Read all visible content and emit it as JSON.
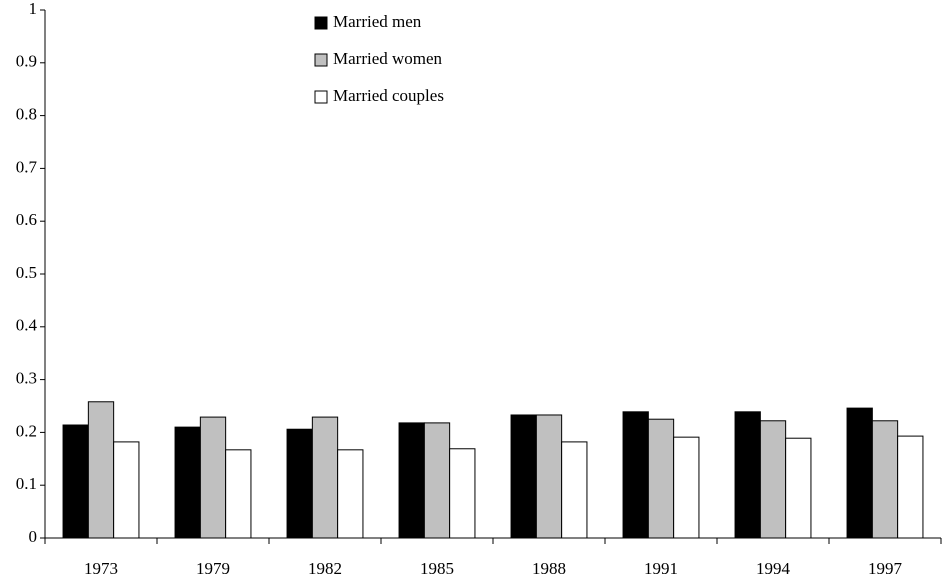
{
  "chart_data": {
    "type": "bar",
    "categories": [
      "1973",
      "1979",
      "1982",
      "1985",
      "1988",
      "1991",
      "1994",
      "1997"
    ],
    "series": [
      {
        "name": "Married men",
        "color": "#000000",
        "values": [
          0.214,
          0.21,
          0.206,
          0.218,
          0.233,
          0.239,
          0.239,
          0.246
        ]
      },
      {
        "name": "Married women",
        "color": "#c0c0c0",
        "values": [
          0.258,
          0.229,
          0.229,
          0.218,
          0.233,
          0.225,
          0.222,
          0.222
        ]
      },
      {
        "name": "Married couples",
        "color": "#ffffff",
        "values": [
          0.182,
          0.167,
          0.167,
          0.169,
          0.182,
          0.191,
          0.189,
          0.193
        ]
      }
    ],
    "ylim": [
      0,
      1
    ],
    "yticks": [
      0,
      0.1,
      0.2,
      0.3,
      0.4,
      0.5,
      0.6,
      0.7,
      0.8,
      0.9,
      1
    ],
    "grid": false,
    "legend": "top"
  }
}
